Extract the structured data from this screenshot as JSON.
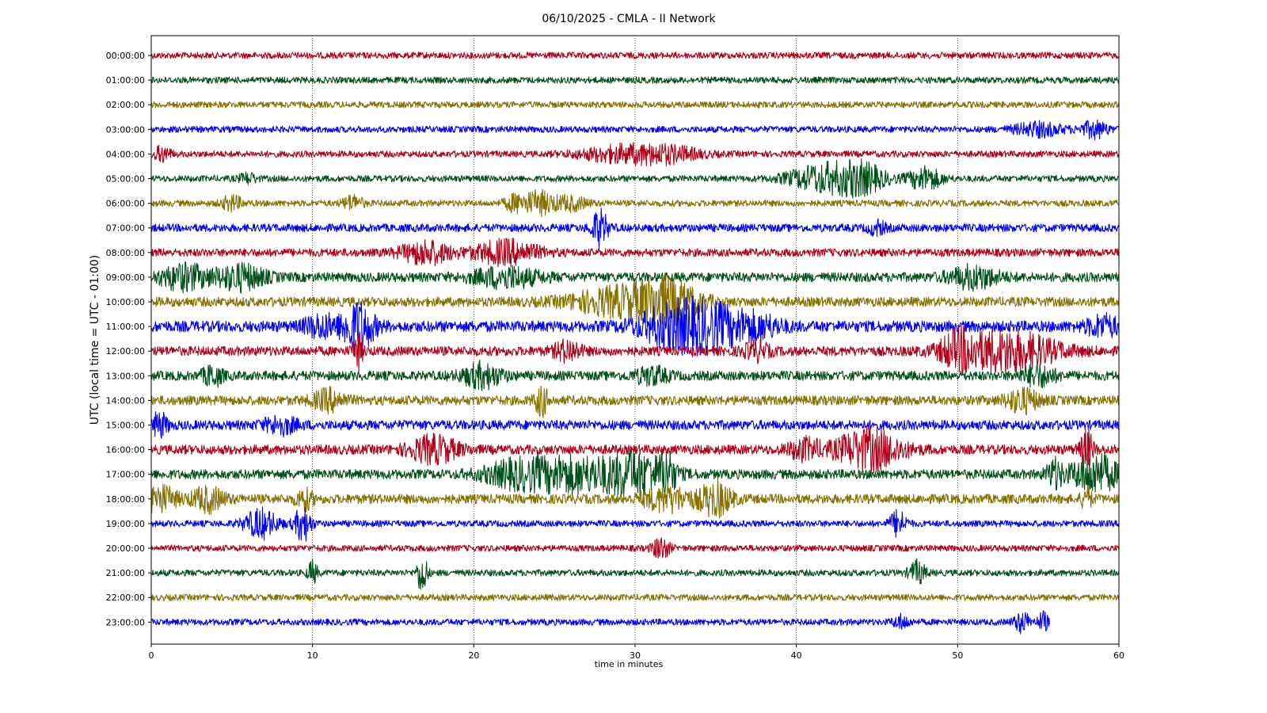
{
  "chart_data": {
    "type": "line",
    "title": "06/10/2025 - CMLA - II Network",
    "xlabel": "time in minutes",
    "ylabel": "UTC (local time = UTC - 01:00)",
    "xlim": [
      0,
      60
    ],
    "xticks": [
      "0",
      "10",
      "20",
      "30",
      "40",
      "50",
      "60"
    ],
    "grid": "vertical dotted at 10-minute ticks",
    "legend": "none",
    "row_colors": [
      "#b00018",
      "#00501a",
      "#857000",
      "#0000ff"
    ],
    "rows": [
      {
        "label": "00:00:00",
        "amp": 4,
        "events": []
      },
      {
        "label": "01:00:00",
        "amp": 4,
        "events": []
      },
      {
        "label": "02:00:00",
        "amp": 4,
        "events": []
      },
      {
        "label": "03:00:00",
        "amp": 4,
        "events": [
          [
            55,
            8,
            1.5
          ],
          [
            58.5,
            10,
            0.8
          ]
        ]
      },
      {
        "label": "04:00:00",
        "amp": 4,
        "events": [
          [
            0.7,
            9,
            0.5
          ],
          [
            29,
            9,
            2.5
          ],
          [
            32,
            9,
            2
          ]
        ]
      },
      {
        "label": "05:00:00",
        "amp": 4,
        "events": [
          [
            6,
            6,
            0.5
          ],
          [
            41.5,
            16,
            2
          ],
          [
            44,
            18,
            1.5
          ],
          [
            48,
            14,
            1
          ]
        ]
      },
      {
        "label": "06:00:00",
        "amp": 4,
        "events": [
          [
            5,
            9,
            0.6
          ],
          [
            12.5,
            9,
            0.6
          ],
          [
            22.5,
            9,
            0.6
          ],
          [
            24,
            14,
            1
          ],
          [
            26,
            8,
            1
          ]
        ]
      },
      {
        "label": "07:00:00",
        "amp": 5,
        "events": [
          [
            27.8,
            22,
            0.5
          ],
          [
            45,
            8,
            0.5
          ]
        ]
      },
      {
        "label": "08:00:00",
        "amp": 5,
        "events": [
          [
            17,
            14,
            1.5
          ],
          [
            22,
            14,
            2
          ]
        ]
      },
      {
        "label": "09:00:00",
        "amp": 6,
        "events": [
          [
            2,
            15,
            1.5
          ],
          [
            5.5,
            15,
            1.5
          ],
          [
            22,
            12,
            2
          ],
          [
            51,
            13,
            1.5
          ]
        ]
      },
      {
        "label": "10:00:00",
        "amp": 6,
        "events": [
          [
            29,
            16,
            3
          ],
          [
            32,
            22,
            2
          ]
        ]
      },
      {
        "label": "11:00:00",
        "amp": 7,
        "events": [
          [
            10.5,
            13,
            1
          ],
          [
            12.8,
            30,
            1
          ],
          [
            32,
            20,
            2
          ],
          [
            34.5,
            26,
            2
          ],
          [
            37.5,
            14,
            1.5
          ],
          [
            59,
            12,
            1
          ]
        ]
      },
      {
        "label": "12:00:00",
        "amp": 6,
        "events": [
          [
            12.8,
            22,
            0.3
          ],
          [
            25.8,
            12,
            0.8
          ],
          [
            37.5,
            10,
            0.8
          ],
          [
            53,
            25,
            3
          ],
          [
            50,
            18,
            1
          ]
        ]
      },
      {
        "label": "13:00:00",
        "amp": 6,
        "events": [
          [
            3.8,
            12,
            0.6
          ],
          [
            20.5,
            14,
            1.2
          ],
          [
            31,
            10,
            1
          ],
          [
            55,
            12,
            1
          ]
        ]
      },
      {
        "label": "14:00:00",
        "amp": 6,
        "events": [
          [
            11,
            12,
            1
          ],
          [
            24.2,
            18,
            0.4
          ],
          [
            54,
            14,
            1
          ]
        ]
      },
      {
        "label": "15:00:00",
        "amp": 6,
        "events": [
          [
            0.5,
            14,
            0.5
          ],
          [
            8,
            10,
            1
          ]
        ]
      },
      {
        "label": "16:00:00",
        "amp": 6,
        "events": [
          [
            17.5,
            16,
            1.5
          ],
          [
            40.5,
            12,
            1
          ],
          [
            44.5,
            25,
            2
          ],
          [
            58,
            22,
            0.4
          ]
        ]
      },
      {
        "label": "17:00:00",
        "amp": 6,
        "events": [
          [
            22.5,
            14,
            2
          ],
          [
            26,
            20,
            2.5
          ],
          [
            30,
            25,
            2
          ],
          [
            32,
            20,
            0.5
          ],
          [
            56,
            16,
            0.5
          ],
          [
            58.5,
            24,
            1.5
          ]
        ]
      },
      {
        "label": "18:00:00",
        "amp": 6,
        "events": [
          [
            0.5,
            16,
            1
          ],
          [
            3.5,
            14,
            1
          ],
          [
            9.5,
            12,
            0.5
          ],
          [
            32,
            14,
            1.5
          ],
          [
            35,
            20,
            1
          ],
          [
            58,
            14,
            0.3
          ]
        ]
      },
      {
        "label": "19:00:00",
        "amp": 4,
        "events": [
          [
            6.8,
            18,
            1
          ],
          [
            9.4,
            22,
            0.5
          ],
          [
            46.3,
            16,
            0.5
          ]
        ]
      },
      {
        "label": "20:00:00",
        "amp": 4,
        "events": [
          [
            31.6,
            14,
            0.5
          ]
        ]
      },
      {
        "label": "21:00:00",
        "amp": 4,
        "events": [
          [
            10,
            14,
            0.3
          ],
          [
            16.8,
            26,
            0.3
          ],
          [
            47.5,
            14,
            0.5
          ]
        ]
      },
      {
        "label": "22:00:00",
        "amp": 4,
        "events": []
      },
      {
        "label": "23:00:00",
        "amp": 4,
        "end": 55.7,
        "events": [
          [
            46.5,
            8,
            0.5
          ],
          [
            54,
            12,
            0.5
          ],
          [
            55.3,
            12,
            0.3
          ]
        ]
      }
    ]
  }
}
